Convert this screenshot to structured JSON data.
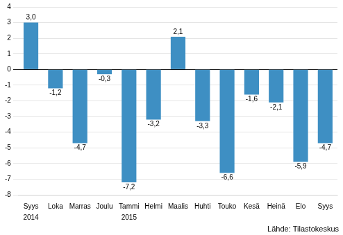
{
  "chart_data": {
    "type": "bar",
    "categories": [
      "Syys",
      "Loka",
      "Marras",
      "Joulu",
      "Tammi",
      "Helmi",
      "Maalis",
      "Huhti",
      "Touko",
      "Kesä",
      "Heinä",
      "Elo",
      "Syys"
    ],
    "values": [
      3.0,
      -1.2,
      -4.7,
      -0.3,
      -7.2,
      -3.2,
      2.1,
      -3.3,
      -6.6,
      -1.6,
      -2.1,
      -5.9,
      -4.7
    ],
    "value_labels": [
      "3,0",
      "-1,2",
      "-4,7",
      "-0,3",
      "-7,2",
      "-3,2",
      "2,1",
      "-3,3",
      "-6,6",
      "-1,6",
      "-2,1",
      "-5,9",
      "-4,7"
    ],
    "color": "#3e8fc3",
    "ylim": [
      -8,
      4
    ],
    "yticks": [
      -8,
      -7,
      -6,
      -5,
      -4,
      -3,
      -2,
      -1,
      0,
      1,
      2,
      3,
      4
    ],
    "grid": true,
    "data_labels": true,
    "annotations": [
      {
        "text": "2014",
        "at": 0
      },
      {
        "text": "2015",
        "at": 4
      },
      {
        "text": "Lähde: Tilastokeskus"
      }
    ]
  }
}
